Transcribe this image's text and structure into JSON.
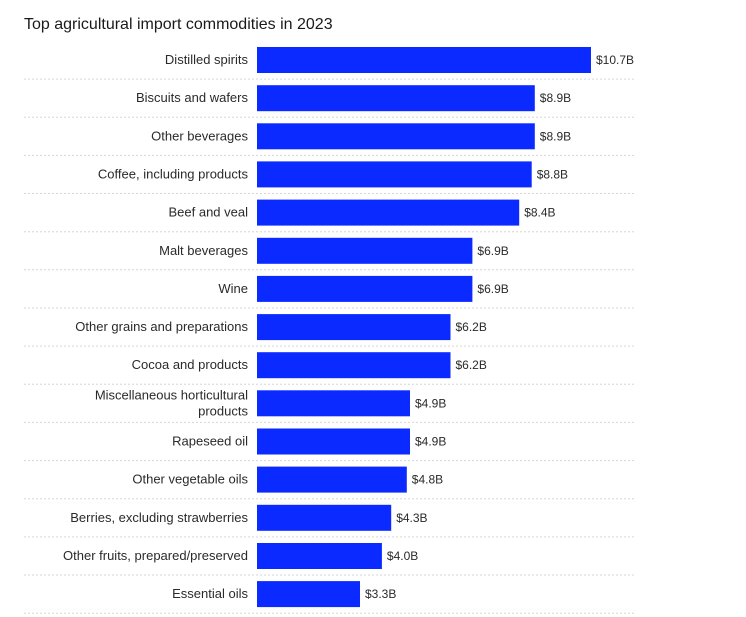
{
  "chart_data": {
    "type": "bar",
    "orientation": "horizontal",
    "title": "Top agricultural import commodities in 2023",
    "xlabel": "",
    "ylabel": "",
    "categories": [
      "Distilled spirits",
      "Biscuits and wafers",
      "Other beverages",
      "Coffee, including products",
      "Beef and veal",
      "Malt beverages",
      "Wine",
      "Other grains and preparations",
      "Cocoa and products",
      "Miscellaneous horticultural products",
      "Rapeseed oil",
      "Other vegetable oils",
      "Berries, excluding strawberries",
      "Other fruits, prepared/preserved",
      "Essential oils"
    ],
    "values": [
      10.7,
      8.9,
      8.9,
      8.8,
      8.4,
      6.9,
      6.9,
      6.2,
      6.2,
      4.9,
      4.9,
      4.8,
      4.3,
      4.0,
      3.3
    ],
    "value_labels": [
      "$10.7B",
      "$8.9B",
      "$8.9B",
      "$8.8B",
      "$8.4B",
      "$6.9B",
      "$6.9B",
      "$6.2B",
      "$6.2B",
      "$4.9B",
      "$4.9B",
      "$4.8B",
      "$4.3B",
      "$4.0B",
      "$3.3B"
    ],
    "xlim": [
      0,
      10.7
    ],
    "grid": false,
    "legend": "none",
    "bar_color": "#0a2aff"
  }
}
